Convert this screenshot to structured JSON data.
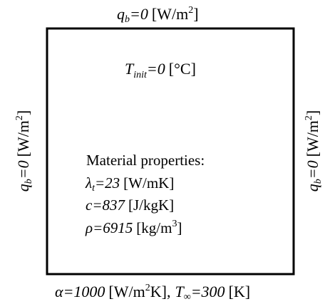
{
  "domain_object": {
    "border_color": "#000000"
  },
  "top_bc": {
    "symbol": "q",
    "subscript": "b",
    "equals_value": "=0",
    "unit_open": "[W/m",
    "unit_sup": "2",
    "unit_close": "]"
  },
  "left_bc": {
    "symbol": "q",
    "subscript": "b",
    "equals_value": "=0",
    "unit_open": "[W/m",
    "unit_sup": "2",
    "unit_close": "]"
  },
  "right_bc": {
    "symbol": "q",
    "subscript": "b",
    "equals_value": "=0",
    "unit_open": "[W/m",
    "unit_sup": "2",
    "unit_close": "]"
  },
  "initial_condition": {
    "symbol": "T",
    "subscript": "init",
    "equals_value": "=0",
    "unit": "[°C]"
  },
  "material": {
    "heading": "Material properties:",
    "lambda": {
      "symbol": "λ",
      "subscript": "t",
      "equals_value": "=23",
      "unit": "[W/mK]"
    },
    "c": {
      "symbol": "c",
      "equals_value": "=837",
      "unit": "[J/kgK]"
    },
    "rho": {
      "symbol": "ρ",
      "equals_value": "=6915",
      "unit_open": "[kg/m",
      "unit_sup": "3",
      "unit_close": "]"
    }
  },
  "bottom_bc": {
    "alpha_symbol": "α",
    "alpha_value": "=1000",
    "alpha_unit_open": "[W/m",
    "alpha_unit_sup": "2",
    "alpha_unit_close": "K],",
    "tinf_symbol": "T",
    "tinf_subscript": "∞",
    "tinf_value": "=300",
    "tinf_unit": "[K]"
  }
}
